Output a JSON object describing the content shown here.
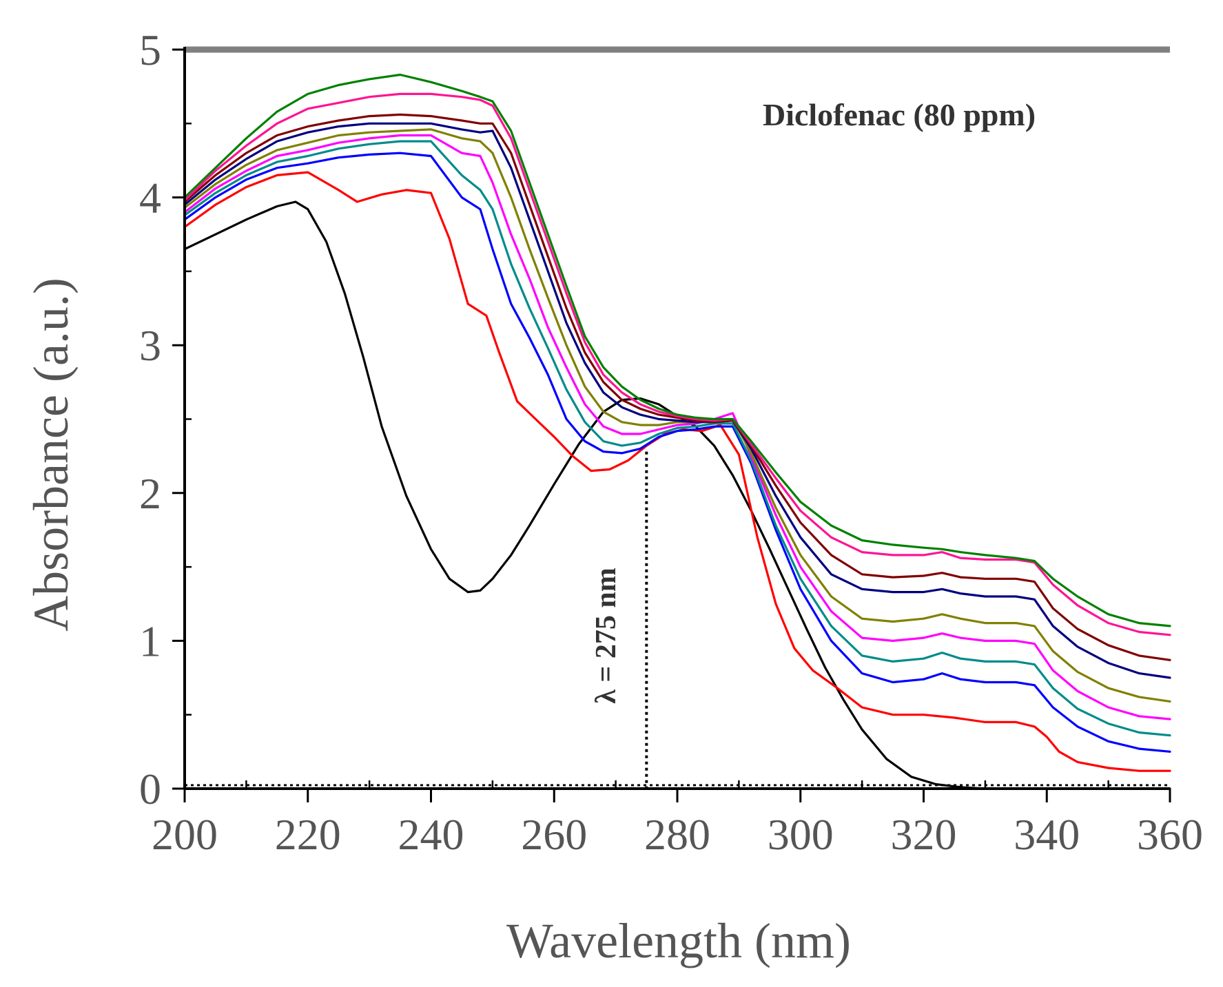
{
  "chart_data": {
    "type": "line",
    "title": "",
    "annotation_title": "Diclofenac (80 ppm)",
    "annotation_lambda": "λ = 275 nm",
    "xlabel": "Wavelength (nm)",
    "ylabel": "Absorbance (a.u.)",
    "xlim": [
      200,
      360
    ],
    "ylim": [
      0,
      5
    ],
    "xticks": [
      "200",
      "220",
      "240",
      "260",
      "280",
      "300",
      "320",
      "340",
      "360"
    ],
    "yticks": [
      "0",
      "1",
      "2",
      "3",
      "4",
      "5"
    ],
    "grid": false,
    "isosbestic_x": 275,
    "series": [
      {
        "name": "black",
        "color": "#000000",
        "x": [
          200,
          205,
          210,
          215,
          218,
          220,
          223,
          226,
          229,
          232,
          236,
          240,
          243,
          246,
          248,
          250,
          253,
          256,
          260,
          264,
          268,
          271,
          274,
          277,
          280,
          283,
          286,
          289,
          292,
          295,
          298,
          301,
          304,
          307,
          310,
          314,
          318,
          322,
          326,
          330,
          334,
          338,
          342,
          346,
          350,
          355,
          360
        ],
        "y": [
          3.65,
          3.75,
          3.85,
          3.94,
          3.97,
          3.92,
          3.7,
          3.35,
          2.92,
          2.45,
          1.98,
          1.62,
          1.42,
          1.33,
          1.34,
          1.42,
          1.58,
          1.78,
          2.06,
          2.33,
          2.55,
          2.63,
          2.64,
          2.6,
          2.52,
          2.45,
          2.32,
          2.12,
          1.88,
          1.62,
          1.35,
          1.08,
          0.82,
          0.6,
          0.4,
          0.2,
          0.08,
          0.03,
          0.01,
          0.0,
          0.0,
          0.0,
          0.0,
          0.0,
          0.0,
          0.0,
          0.0
        ]
      },
      {
        "name": "red",
        "color": "#ff0000",
        "x": [
          200,
          205,
          210,
          215,
          220,
          225,
          228,
          232,
          236,
          240,
          243,
          246,
          249,
          251,
          254,
          257,
          260,
          263,
          266,
          269,
          272,
          275,
          278,
          281,
          284,
          287,
          290,
          293,
          296,
          299,
          302,
          306,
          310,
          315,
          320,
          325,
          330,
          335,
          338,
          340,
          342,
          345,
          350,
          355,
          360
        ],
        "y": [
          3.8,
          3.95,
          4.07,
          4.15,
          4.17,
          4.05,
          3.97,
          4.02,
          4.05,
          4.03,
          3.72,
          3.28,
          3.2,
          2.96,
          2.62,
          2.5,
          2.38,
          2.25,
          2.15,
          2.16,
          2.22,
          2.32,
          2.4,
          2.43,
          2.42,
          2.46,
          2.26,
          1.7,
          1.25,
          0.95,
          0.8,
          0.68,
          0.55,
          0.5,
          0.5,
          0.48,
          0.45,
          0.45,
          0.42,
          0.35,
          0.25,
          0.18,
          0.14,
          0.12,
          0.12
        ]
      },
      {
        "name": "blue",
        "color": "#0000ff",
        "x": [
          200,
          205,
          210,
          215,
          220,
          225,
          230,
          235,
          240,
          245,
          248,
          250,
          253,
          256,
          259,
          262,
          265,
          268,
          271,
          274,
          277,
          280,
          283,
          286,
          289,
          292,
          296,
          300,
          305,
          310,
          315,
          320,
          323,
          326,
          330,
          335,
          338,
          341,
          345,
          350,
          355,
          360
        ],
        "y": [
          3.85,
          4.0,
          4.12,
          4.2,
          4.23,
          4.27,
          4.29,
          4.3,
          4.28,
          4.0,
          3.92,
          3.65,
          3.28,
          3.05,
          2.8,
          2.5,
          2.35,
          2.28,
          2.27,
          2.3,
          2.38,
          2.42,
          2.43,
          2.45,
          2.45,
          2.2,
          1.75,
          1.35,
          1.0,
          0.78,
          0.72,
          0.74,
          0.78,
          0.74,
          0.72,
          0.72,
          0.7,
          0.55,
          0.42,
          0.32,
          0.27,
          0.25
        ]
      },
      {
        "name": "teal",
        "color": "#008b8b",
        "x": [
          200,
          205,
          210,
          215,
          220,
          225,
          230,
          235,
          240,
          245,
          248,
          250,
          253,
          256,
          259,
          262,
          265,
          268,
          271,
          274,
          277,
          280,
          283,
          286,
          289,
          292,
          296,
          300,
          305,
          310,
          315,
          320,
          323,
          326,
          330,
          335,
          338,
          341,
          345,
          350,
          355,
          360
        ],
        "y": [
          3.88,
          4.03,
          4.15,
          4.24,
          4.28,
          4.33,
          4.36,
          4.38,
          4.38,
          4.15,
          4.05,
          3.92,
          3.55,
          3.25,
          2.98,
          2.7,
          2.48,
          2.35,
          2.32,
          2.34,
          2.4,
          2.44,
          2.45,
          2.47,
          2.47,
          2.22,
          1.78,
          1.42,
          1.1,
          0.9,
          0.86,
          0.88,
          0.92,
          0.88,
          0.86,
          0.86,
          0.84,
          0.68,
          0.54,
          0.44,
          0.38,
          0.36
        ]
      },
      {
        "name": "magenta",
        "color": "#ff00ff",
        "x": [
          200,
          205,
          210,
          215,
          220,
          225,
          230,
          235,
          240,
          245,
          248,
          250,
          253,
          256,
          259,
          262,
          265,
          268,
          271,
          274,
          277,
          280,
          283,
          286,
          289,
          292,
          296,
          300,
          305,
          310,
          315,
          320,
          323,
          326,
          330,
          335,
          338,
          341,
          345,
          350,
          355,
          360
        ],
        "y": [
          3.9,
          4.06,
          4.18,
          4.28,
          4.32,
          4.37,
          4.4,
          4.42,
          4.42,
          4.3,
          4.28,
          4.1,
          3.75,
          3.45,
          3.12,
          2.85,
          2.6,
          2.45,
          2.4,
          2.4,
          2.43,
          2.46,
          2.47,
          2.5,
          2.54,
          2.25,
          1.85,
          1.5,
          1.2,
          1.02,
          1.0,
          1.02,
          1.05,
          1.02,
          1.0,
          1.0,
          0.98,
          0.8,
          0.66,
          0.55,
          0.49,
          0.47
        ]
      },
      {
        "name": "olive",
        "color": "#808000",
        "x": [
          200,
          205,
          210,
          215,
          220,
          225,
          230,
          235,
          240,
          245,
          248,
          250,
          253,
          256,
          259,
          262,
          265,
          268,
          271,
          274,
          277,
          280,
          283,
          286,
          289,
          292,
          296,
          300,
          305,
          310,
          315,
          320,
          323,
          326,
          330,
          335,
          338,
          341,
          345,
          350,
          355,
          360
        ],
        "y": [
          3.93,
          4.09,
          4.22,
          4.32,
          4.37,
          4.42,
          4.44,
          4.45,
          4.46,
          4.4,
          4.38,
          4.3,
          4.0,
          3.65,
          3.32,
          3.0,
          2.72,
          2.55,
          2.48,
          2.46,
          2.46,
          2.48,
          2.48,
          2.49,
          2.5,
          2.27,
          1.9,
          1.58,
          1.3,
          1.15,
          1.13,
          1.15,
          1.18,
          1.15,
          1.12,
          1.12,
          1.1,
          0.93,
          0.79,
          0.68,
          0.62,
          0.59
        ]
      },
      {
        "name": "navy",
        "color": "#000080",
        "x": [
          200,
          205,
          210,
          215,
          220,
          225,
          230,
          235,
          240,
          245,
          248,
          250,
          253,
          256,
          259,
          262,
          265,
          268,
          271,
          274,
          277,
          280,
          283,
          286,
          289,
          292,
          296,
          300,
          305,
          310,
          315,
          320,
          323,
          326,
          330,
          335,
          338,
          341,
          345,
          350,
          355,
          360
        ],
        "y": [
          3.95,
          4.12,
          4.26,
          4.38,
          4.44,
          4.48,
          4.5,
          4.5,
          4.5,
          4.46,
          4.44,
          4.45,
          4.2,
          3.85,
          3.5,
          3.15,
          2.88,
          2.68,
          2.58,
          2.53,
          2.5,
          2.49,
          2.48,
          2.48,
          2.49,
          2.3,
          1.98,
          1.7,
          1.45,
          1.35,
          1.33,
          1.33,
          1.35,
          1.32,
          1.3,
          1.3,
          1.28,
          1.1,
          0.96,
          0.85,
          0.78,
          0.75
        ]
      },
      {
        "name": "maroon",
        "color": "#800000",
        "x": [
          200,
          205,
          210,
          215,
          220,
          225,
          230,
          235,
          240,
          245,
          248,
          250,
          253,
          256,
          259,
          262,
          265,
          268,
          271,
          274,
          277,
          280,
          283,
          286,
          289,
          292,
          296,
          300,
          305,
          310,
          315,
          320,
          323,
          326,
          330,
          335,
          338,
          341,
          345,
          350,
          355,
          360
        ],
        "y": [
          3.97,
          4.15,
          4.3,
          4.42,
          4.48,
          4.52,
          4.55,
          4.56,
          4.55,
          4.52,
          4.5,
          4.5,
          4.3,
          3.95,
          3.6,
          3.25,
          2.95,
          2.75,
          2.63,
          2.57,
          2.53,
          2.51,
          2.49,
          2.48,
          2.49,
          2.32,
          2.05,
          1.8,
          1.58,
          1.45,
          1.43,
          1.44,
          1.46,
          1.43,
          1.42,
          1.42,
          1.4,
          1.22,
          1.08,
          0.97,
          0.9,
          0.87
        ]
      },
      {
        "name": "pink",
        "color": "#ff1493",
        "x": [
          200,
          205,
          210,
          215,
          220,
          225,
          230,
          235,
          240,
          245,
          248,
          250,
          253,
          256,
          259,
          262,
          265,
          268,
          271,
          274,
          277,
          280,
          283,
          286,
          289,
          292,
          296,
          300,
          305,
          310,
          315,
          320,
          323,
          326,
          330,
          335,
          338,
          341,
          345,
          350,
          355,
          360
        ],
        "y": [
          3.98,
          4.18,
          4.35,
          4.5,
          4.6,
          4.64,
          4.68,
          4.7,
          4.7,
          4.68,
          4.66,
          4.62,
          4.4,
          4.05,
          3.7,
          3.35,
          3.02,
          2.8,
          2.68,
          2.6,
          2.55,
          2.52,
          2.5,
          2.49,
          2.5,
          2.33,
          2.1,
          1.88,
          1.7,
          1.6,
          1.58,
          1.58,
          1.6,
          1.56,
          1.55,
          1.55,
          1.53,
          1.38,
          1.24,
          1.12,
          1.06,
          1.04
        ]
      },
      {
        "name": "green",
        "color": "#008000",
        "x": [
          200,
          205,
          210,
          215,
          220,
          225,
          230,
          235,
          240,
          245,
          248,
          250,
          253,
          256,
          259,
          262,
          265,
          268,
          271,
          274,
          277,
          280,
          283,
          286,
          289,
          292,
          296,
          300,
          305,
          310,
          315,
          320,
          323,
          326,
          330,
          335,
          338,
          341,
          345,
          350,
          355,
          360
        ],
        "y": [
          4.0,
          4.2,
          4.4,
          4.58,
          4.7,
          4.76,
          4.8,
          4.83,
          4.78,
          4.72,
          4.68,
          4.65,
          4.45,
          4.1,
          3.75,
          3.4,
          3.06,
          2.85,
          2.72,
          2.63,
          2.57,
          2.53,
          2.51,
          2.5,
          2.5,
          2.35,
          2.14,
          1.94,
          1.78,
          1.68,
          1.65,
          1.63,
          1.62,
          1.6,
          1.58,
          1.56,
          1.54,
          1.42,
          1.3,
          1.18,
          1.12,
          1.1
        ]
      }
    ]
  }
}
